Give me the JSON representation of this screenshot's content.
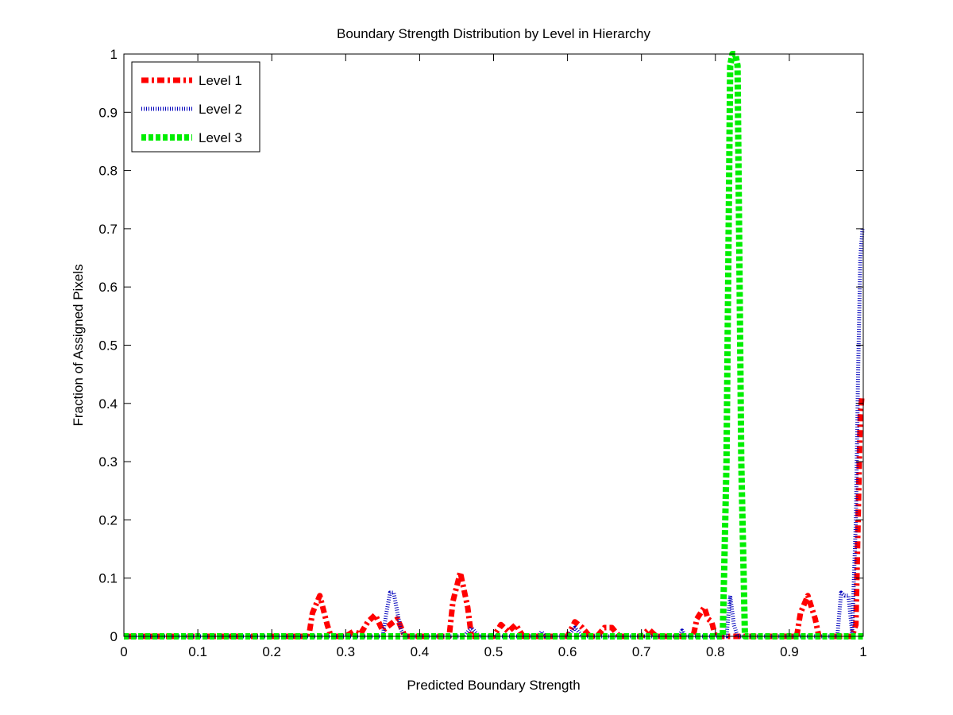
{
  "chart_data": {
    "type": "line",
    "title": "Boundary Strength Distribution by Level in Hierarchy",
    "xlabel": "Predicted Boundary Strength",
    "ylabel": "Fraction of Assigned Pixels",
    "xlim": [
      0,
      1
    ],
    "ylim": [
      0,
      1
    ],
    "xticks": [
      "0",
      "0.1",
      "0.2",
      "0.3",
      "0.4",
      "0.5",
      "0.6",
      "0.7",
      "0.8",
      "0.9",
      "1"
    ],
    "yticks": [
      "0",
      "0.1",
      "0.2",
      "0.3",
      "0.4",
      "0.5",
      "0.6",
      "0.7",
      "0.8",
      "0.9",
      "1"
    ],
    "grid": false,
    "legend_position": "top-left",
    "series": [
      {
        "name": "Level 1",
        "color": "#ff0000",
        "style": "dash-dot",
        "x": [
          0.0,
          0.25,
          0.255,
          0.265,
          0.275,
          0.28,
          0.3,
          0.31,
          0.32,
          0.33,
          0.34,
          0.35,
          0.36,
          0.37,
          0.38,
          0.44,
          0.445,
          0.455,
          0.465,
          0.47,
          0.5,
          0.51,
          0.52,
          0.53,
          0.54,
          0.6,
          0.61,
          0.62,
          0.63,
          0.64,
          0.65,
          0.66,
          0.67,
          0.7,
          0.71,
          0.72,
          0.77,
          0.775,
          0.785,
          0.79,
          0.795,
          0.8,
          0.91,
          0.915,
          0.925,
          0.935,
          0.94,
          0.985,
          0.99,
          0.993,
          0.996,
          0.998,
          1.0
        ],
        "y": [
          0.0,
          0.0,
          0.04,
          0.07,
          0.02,
          0.0,
          0.0,
          0.008,
          0.004,
          0.025,
          0.037,
          0.01,
          0.02,
          0.03,
          0.0,
          0.0,
          0.06,
          0.11,
          0.05,
          0.0,
          0.0,
          0.02,
          0.008,
          0.02,
          0.0,
          0.0,
          0.025,
          0.015,
          0.0,
          0.0,
          0.015,
          0.015,
          0.0,
          0.0,
          0.012,
          0.0,
          0.0,
          0.03,
          0.05,
          0.03,
          0.025,
          0.0,
          0.0,
          0.04,
          0.07,
          0.03,
          0.0,
          0.0,
          0.02,
          0.2,
          0.38,
          0.41,
          0.41
        ]
      },
      {
        "name": "Level 2",
        "color": "#0000bb",
        "style": "dotted",
        "x": [
          0.0,
          0.35,
          0.355,
          0.36,
          0.365,
          0.37,
          0.375,
          0.38,
          0.46,
          0.47,
          0.48,
          0.56,
          0.565,
          0.57,
          0.6,
          0.61,
          0.62,
          0.75,
          0.755,
          0.76,
          0.815,
          0.82,
          0.825,
          0.83,
          0.84,
          0.965,
          0.97,
          0.975,
          0.98,
          0.985,
          0.99,
          0.993,
          0.996,
          0.999
        ],
        "y": [
          0.0,
          0.0,
          0.04,
          0.075,
          0.075,
          0.04,
          0.01,
          0.0,
          0.0,
          0.015,
          0.0,
          0.0,
          0.008,
          0.0,
          0.0,
          0.015,
          0.0,
          0.0,
          0.01,
          0.0,
          0.0,
          0.07,
          0.02,
          0.0,
          0.0,
          0.0,
          0.075,
          0.07,
          0.07,
          0.005,
          0.2,
          0.45,
          0.65,
          0.7
        ]
      },
      {
        "name": "Level 3",
        "color": "#00ee00",
        "style": "dashed",
        "x": [
          0.0,
          0.81,
          0.815,
          0.82,
          0.823,
          0.827,
          0.83,
          0.835,
          0.84,
          1.0
        ],
        "y": [
          0.0,
          0.0,
          0.3,
          0.98,
          1.0,
          1.0,
          0.98,
          0.3,
          0.0,
          0.0
        ]
      }
    ]
  }
}
